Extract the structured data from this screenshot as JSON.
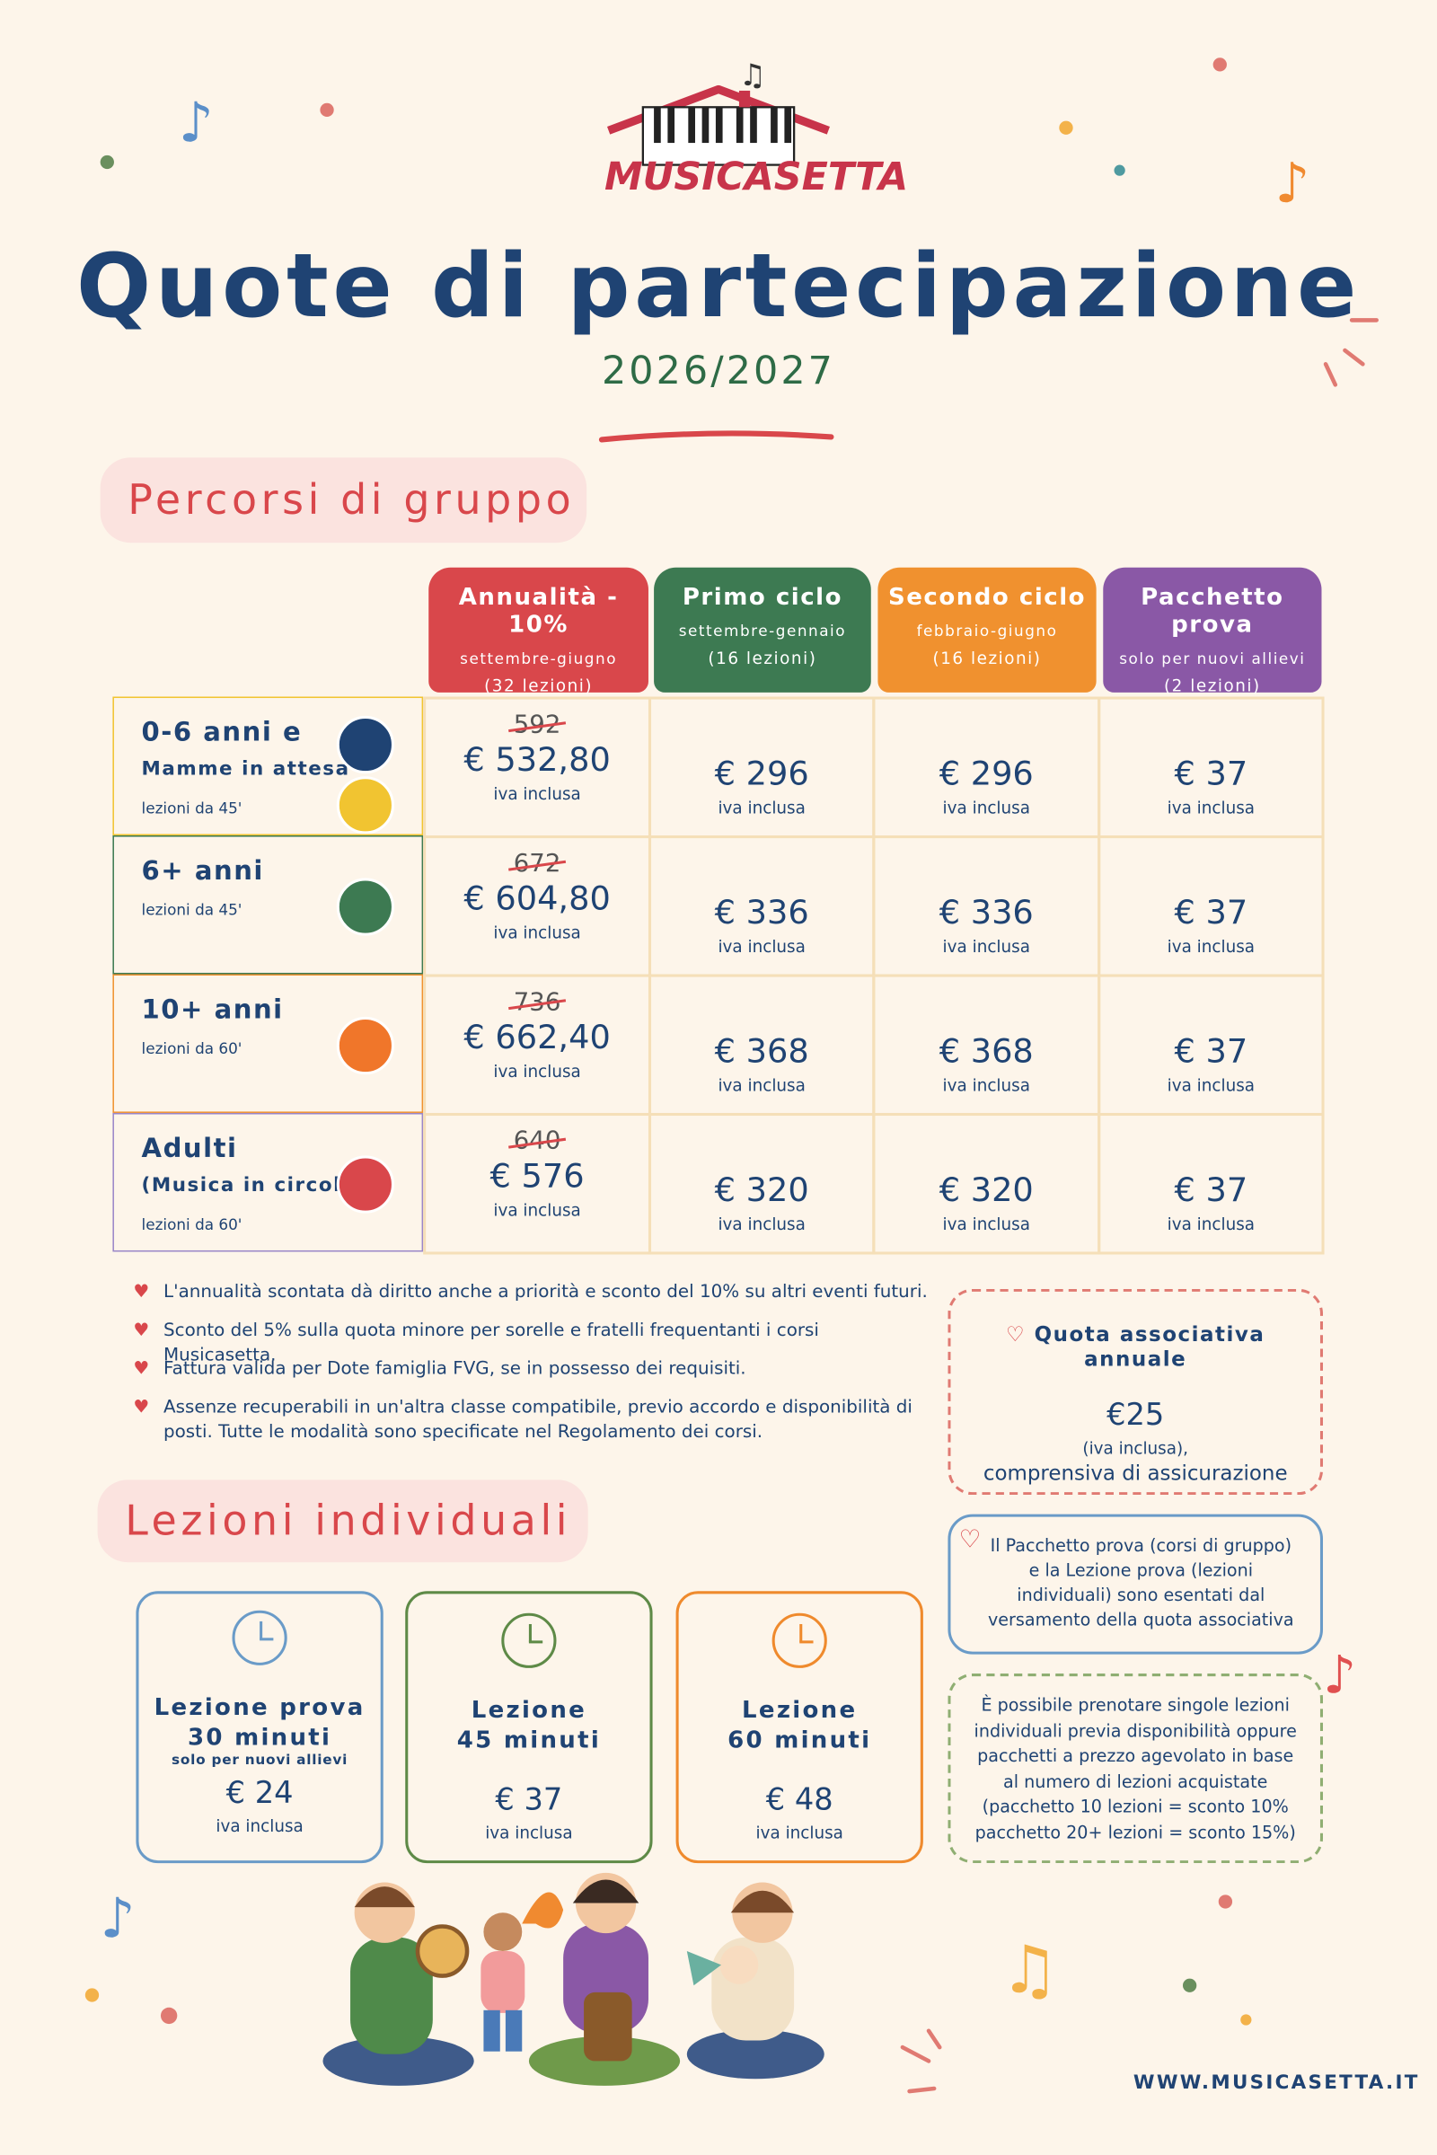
{
  "logo": {
    "text": "MUSICASETTA"
  },
  "header": {
    "title": "Quote di partecipazione",
    "subtitle": "2026/2027"
  },
  "group": {
    "heading": "Percorsi di gruppo",
    "vat_note": "iva inclusa",
    "columns": [
      {
        "name": "Annualità - 10%",
        "period": "settembre-giugno",
        "lessons": "(32 lezioni)"
      },
      {
        "name": "Primo ciclo",
        "period": "settembre-gennaio",
        "lessons": "(16 lezioni)"
      },
      {
        "name": "Secondo ciclo",
        "period": "febbraio-giugno",
        "lessons": "(16 lezioni)"
      },
      {
        "name": "Pacchetto prova",
        "period": "solo per nuovi allievi",
        "lessons": "(2 lezioni)"
      }
    ],
    "rows": [
      {
        "lines": [
          "0-6 anni e",
          "Mamme in attesa"
        ],
        "duration": "lezioni da 45'",
        "old_price": "592",
        "prices": [
          "€ 532,80",
          "€ 296",
          "€ 296",
          "€ 37"
        ]
      },
      {
        "lines": [
          "6+ anni"
        ],
        "duration": "lezioni da 45'",
        "old_price": "672",
        "prices": [
          "€ 604,80",
          "€ 336",
          "€ 336",
          "€ 37"
        ]
      },
      {
        "lines": [
          "10+ anni"
        ],
        "duration": "lezioni da 60'",
        "old_price": "736",
        "prices": [
          "€ 662,40",
          "€ 368",
          "€ 368",
          "€ 37"
        ]
      },
      {
        "lines": [
          "Adulti",
          "(Musica in circolo)"
        ],
        "duration": "lezioni da 60'",
        "old_price": "640",
        "prices": [
          "€ 576",
          "€ 320",
          "€ 320",
          "€ 37"
        ]
      }
    ],
    "notes": [
      "L'annualità scontata dà diritto anche a priorità e sconto del 10% su altri eventi futuri.",
      "Sconto del 5% sulla quota minore per sorelle e fratelli frequentanti i corsi Musicasetta.",
      "Fattura valida per Dote famiglia FVG, se in possesso dei requisiti.",
      "Assenze recuperabili in un'altra classe compatibile, previo accordo e disponibilità di posti. Tutte le modalità sono specificate nel Regolamento dei corsi."
    ]
  },
  "membership": {
    "title": "Quota associativa annuale",
    "price": "€25",
    "vat": "(iva inclusa),",
    "note": "comprensiva di assicurazione"
  },
  "exemption": {
    "text": "Il Pacchetto prova (corsi di gruppo) e la Lezione prova (lezioni individuali) sono esentati dal versamento della quota associativa"
  },
  "packages": {
    "text": "È possibile prenotare singole lezioni individuali previa disponibilità oppure pacchetti a prezzo agevolato in base al numero di lezioni acquistate (pacchetto 10 lezioni = sconto 10% pacchetto 20+ lezioni = sconto 15%)"
  },
  "individual": {
    "heading": "Lezioni individuali",
    "cards": [
      {
        "title": "Lezione prova",
        "duration": "30 minuti",
        "subtitle": "solo per nuovi allievi",
        "price": "€ 24",
        "vat": "iva inclusa"
      },
      {
        "title": "Lezione",
        "duration": "45 minuti",
        "price": "€ 37",
        "vat": "iva inclusa"
      },
      {
        "title": "Lezione",
        "duration": "60 minuti",
        "price": "€ 48",
        "vat": "iva inclusa"
      }
    ]
  },
  "footer": {
    "website": "WWW.MUSICASETTA.IT"
  }
}
